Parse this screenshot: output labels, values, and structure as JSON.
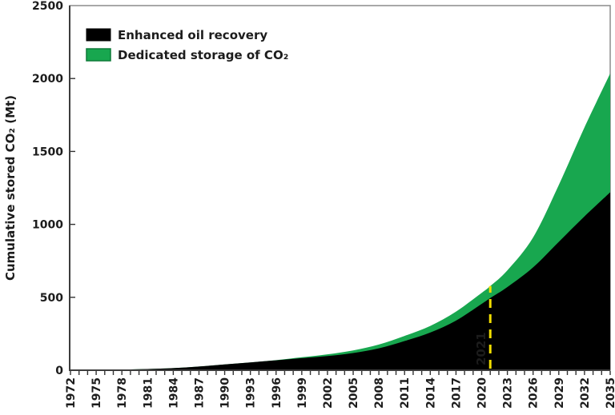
{
  "chart_data": {
    "type": "area",
    "stacked": true,
    "title": "",
    "xlabel": "",
    "ylabel": "Cumulative stored CO₂ (Mt)",
    "ylim": [
      0,
      2500
    ],
    "y_ticks": [
      0,
      500,
      1000,
      1500,
      2000,
      2500
    ],
    "xlim": [
      1972,
      2035
    ],
    "x_labeled_ticks": [
      1972,
      1975,
      1978,
      1981,
      1984,
      1987,
      1990,
      1993,
      1996,
      1999,
      2002,
      2005,
      2008,
      2011,
      2014,
      2017,
      2020,
      2023,
      2026,
      2029,
      2032,
      2035
    ],
    "x_minor_tick_step": 1,
    "grid": "off",
    "legend_position": "top-left-inside",
    "x": [
      1972,
      1975,
      1978,
      1981,
      1984,
      1987,
      1990,
      1993,
      1996,
      1999,
      2002,
      2005,
      2008,
      2011,
      2014,
      2017,
      2020,
      2021,
      2023,
      2026,
      2029,
      2032,
      2035
    ],
    "series": [
      {
        "name": "Enhanced oil recovery",
        "color": "#000000",
        "values": [
          0,
          2,
          4,
          8,
          14,
          25,
          40,
          54,
          68,
          83,
          97,
          118,
          150,
          200,
          258,
          340,
          455,
          495,
          570,
          705,
          880,
          1055,
          1220
        ]
      },
      {
        "name": "Dedicated storage of CO₂",
        "color": "#18a74f",
        "values": [
          0,
          0,
          0,
          0,
          0,
          0,
          0,
          0,
          1,
          6,
          12,
          18,
          26,
          35,
          46,
          62,
          75,
          82,
          115,
          205,
          390,
          610,
          815
        ]
      }
    ],
    "annotation": {
      "label": "2021",
      "year": 2021,
      "top_value": 577,
      "color": "#f2de00",
      "style": "vertical-dashed-line"
    },
    "colors": {
      "eor_fill": "#000000",
      "dedicated_fill": "#18a74f",
      "dedicated_swatch_border": "#0e7a38",
      "axis_line": "#3d3d3d",
      "frame_line": "#8c8c8c",
      "tick_text": "#1c1c1c",
      "annotation_yellow": "#f2de00",
      "background": "#ffffff"
    }
  }
}
